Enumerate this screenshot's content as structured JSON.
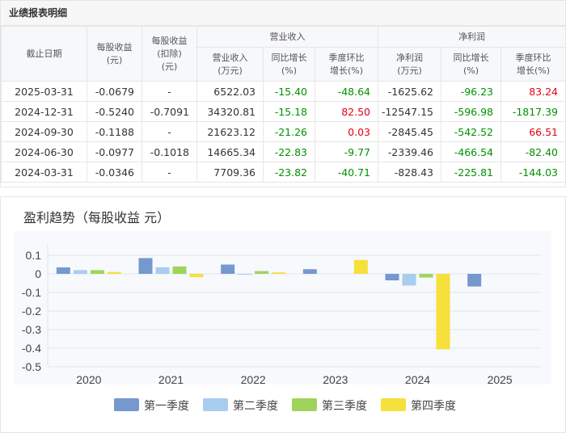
{
  "table_section": {
    "title": "业绩报表明细",
    "headers": {
      "date": "截止日期",
      "eps": "每股收益\n(元)",
      "eps_deducted": "每股收益\n(扣除)\n(元)",
      "revenue_group": "营业收入",
      "net_profit_group": "净利润",
      "revenue": "营业收入\n(万元)",
      "revenue_yoy": "同比增长\n(%)",
      "revenue_qoq": "季度环比\n增长(%)",
      "net_profit": "净利润\n(万元)",
      "profit_yoy": "同比增长\n(%)",
      "profit_qoq": "季度环比\n增长(%)"
    },
    "rows": [
      {
        "date": "2025-03-31",
        "eps": "-0.0679",
        "eps_deducted": "-",
        "revenue": "6522.03",
        "revenue_yoy": "-15.40",
        "revenue_qoq": "-48.64",
        "net_profit": "-1625.62",
        "profit_yoy": "-96.23",
        "profit_qoq": "83.24"
      },
      {
        "date": "2024-12-31",
        "eps": "-0.5240",
        "eps_deducted": "-0.7091",
        "revenue": "34320.81",
        "revenue_yoy": "-15.18",
        "revenue_qoq": "82.50",
        "net_profit": "-12547.15",
        "profit_yoy": "-596.98",
        "profit_qoq": "-1817.39"
      },
      {
        "date": "2024-09-30",
        "eps": "-0.1188",
        "eps_deducted": "-",
        "revenue": "21623.12",
        "revenue_yoy": "-21.26",
        "revenue_qoq": "0.03",
        "net_profit": "-2845.45",
        "profit_yoy": "-542.52",
        "profit_qoq": "66.51"
      },
      {
        "date": "2024-06-30",
        "eps": "-0.0977",
        "eps_deducted": "-0.1018",
        "revenue": "14665.34",
        "revenue_yoy": "-22.83",
        "revenue_qoq": "-9.77",
        "net_profit": "-2339.46",
        "profit_yoy": "-466.54",
        "profit_qoq": "-82.40"
      },
      {
        "date": "2024-03-31",
        "eps": "-0.0346",
        "eps_deducted": "-",
        "revenue": "7709.36",
        "revenue_yoy": "-23.82",
        "revenue_qoq": "-40.71",
        "net_profit": "-828.43",
        "profit_yoy": "-225.81",
        "profit_qoq": "-144.03"
      }
    ],
    "colors": {
      "positive": "#e60012",
      "negative": "#009100"
    }
  },
  "chart_data": {
    "type": "bar",
    "title": "盈利趋势（每股收益 元）",
    "categories": [
      "2020",
      "2021",
      "2022",
      "2023",
      "2024",
      "2025"
    ],
    "series": [
      {
        "name": "第一季度",
        "color": "#7698cf",
        "values": [
          0.035,
          0.085,
          0.05,
          0.025,
          -0.035,
          -0.0679
        ]
      },
      {
        "name": "第二季度",
        "color": "#a9cdee",
        "values": [
          0.02,
          0.035,
          -0.005,
          null,
          -0.063,
          null
        ]
      },
      {
        "name": "第三季度",
        "color": "#9fd45c",
        "values": [
          0.02,
          0.04,
          0.015,
          null,
          -0.02,
          null
        ]
      },
      {
        "name": "第四季度",
        "color": "#f6e03c",
        "values": [
          0.01,
          -0.018,
          0.008,
          0.075,
          -0.406,
          null
        ]
      }
    ],
    "ylim": [
      -0.5,
      0.1
    ],
    "yticks": [
      "0.1",
      "0",
      "-0.1",
      "-0.2",
      "-0.3",
      "-0.4",
      "-0.5"
    ],
    "grid": true,
    "legend_position": "bottom"
  }
}
